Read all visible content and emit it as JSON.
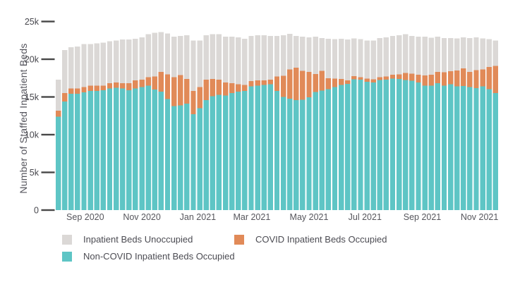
{
  "page": {
    "background": "#ffffff"
  },
  "chart_data": {
    "type": "bar",
    "stacked": true,
    "title": "",
    "xlabel": "",
    "ylabel": "Number of Staffed Inpatient Beds",
    "value_unit": "thousands of beds",
    "ylim": [
      0,
      25
    ],
    "grid": false,
    "legend_position": "bottom",
    "y_ticks": [
      {
        "value": 25,
        "label": "25k"
      },
      {
        "value": 20,
        "label": "20k"
      },
      {
        "value": 15,
        "label": "15k"
      },
      {
        "value": 10,
        "label": "10k"
      },
      {
        "value": 5,
        "label": "5k"
      },
      {
        "value": 0,
        "label": "0"
      }
    ],
    "x_ticks": [
      {
        "pos": 4.2,
        "label": "Sep 2020"
      },
      {
        "pos": 13.0,
        "label": "Nov 2020"
      },
      {
        "pos": 21.7,
        "label": "Jan 2021"
      },
      {
        "pos": 30.1,
        "label": "Mar 2021"
      },
      {
        "pos": 39.0,
        "label": "May 2021"
      },
      {
        "pos": 47.7,
        "label": "Jul 2021"
      },
      {
        "pos": 56.6,
        "label": "Sep 2021"
      },
      {
        "pos": 65.5,
        "label": "Nov 2021"
      }
    ],
    "x_description": "weekly bars, Aug 2020 - Nov 2021",
    "series": [
      {
        "name": "Non-COVID Inpatient Beds Occupied",
        "color": "#5EC5C5",
        "values": [
          12.4,
          14.4,
          15.4,
          15.4,
          15.6,
          15.8,
          15.8,
          15.9,
          16.1,
          16.2,
          16.1,
          15.9,
          16.1,
          16.3,
          16.5,
          16.0,
          15.7,
          14.7,
          13.8,
          13.9,
          14.1,
          12.7,
          13.5,
          14.6,
          15.1,
          15.3,
          15.2,
          15.5,
          15.7,
          15.8,
          16.4,
          16.5,
          16.6,
          16.7,
          15.8,
          15.0,
          14.75,
          14.6,
          14.65,
          14.95,
          15.65,
          15.85,
          16.05,
          16.3,
          16.6,
          16.75,
          17.35,
          17.3,
          17.0,
          16.9,
          17.25,
          17.3,
          17.45,
          17.4,
          17.25,
          17.15,
          16.9,
          16.5,
          16.5,
          16.8,
          16.5,
          16.7,
          16.4,
          16.45,
          16.3,
          16.15,
          16.4,
          16.05,
          15.5
        ]
      },
      {
        "name": "COVID Inpatient Beds Occupied",
        "color": "#E18A58",
        "values": [
          0.8,
          1.1,
          0.7,
          0.7,
          0.7,
          0.7,
          0.7,
          0.6,
          0.7,
          0.7,
          0.7,
          0.9,
          1.1,
          1.0,
          1.1,
          1.7,
          2.6,
          3.3,
          3.8,
          4.0,
          3.3,
          3.1,
          2.8,
          2.7,
          2.3,
          2.0,
          1.7,
          1.3,
          1.0,
          0.8,
          0.7,
          0.7,
          0.6,
          0.6,
          1.9,
          2.8,
          3.9,
          4.3,
          3.8,
          3.35,
          2.4,
          2.6,
          1.45,
          1.15,
          0.8,
          0.45,
          0.4,
          0.3,
          0.45,
          0.45,
          0.35,
          0.4,
          0.5,
          0.6,
          0.95,
          0.95,
          1.05,
          1.35,
          1.45,
          1.5,
          1.75,
          1.7,
          2.1,
          2.35,
          2.0,
          2.4,
          2.25,
          2.9,
          3.6
        ]
      },
      {
        "name": "Inpatient Beds Unoccupied",
        "color": "#DBD8D6",
        "values": [
          4.1,
          5.7,
          5.5,
          5.6,
          5.7,
          5.5,
          5.6,
          5.7,
          5.6,
          5.6,
          5.8,
          5.8,
          5.5,
          5.6,
          5.7,
          5.8,
          5.3,
          5.4,
          5.4,
          5.2,
          5.8,
          6.7,
          6.2,
          5.9,
          5.9,
          6.0,
          6.1,
          6.2,
          6.2,
          6.1,
          6.0,
          6.0,
          6.0,
          5.8,
          5.4,
          5.4,
          4.7,
          4.2,
          4.55,
          4.6,
          4.95,
          4.35,
          5.2,
          5.2,
          5.3,
          5.4,
          5.0,
          5.05,
          5.05,
          5.15,
          5.2,
          5.2,
          5.15,
          5.2,
          5.1,
          5.0,
          5.05,
          5.15,
          4.9,
          4.7,
          4.55,
          4.4,
          4.25,
          4.1,
          4.5,
          4.35,
          4.1,
          3.7,
          3.4
        ]
      }
    ]
  },
  "legend": {
    "items": [
      {
        "label": "Inpatient Beds Unoccupied",
        "color": "#DBD8D6"
      },
      {
        "label": "COVID Inpatient Beds Occupied",
        "color": "#E18A58"
      },
      {
        "label": "Non-COVID Inpatient Beds Occupied",
        "color": "#5EC5C5"
      }
    ]
  },
  "style": {
    "tick_label_color": "#47474d",
    "tick_mark_color": "#474747",
    "month_label_color": "#56565c"
  }
}
